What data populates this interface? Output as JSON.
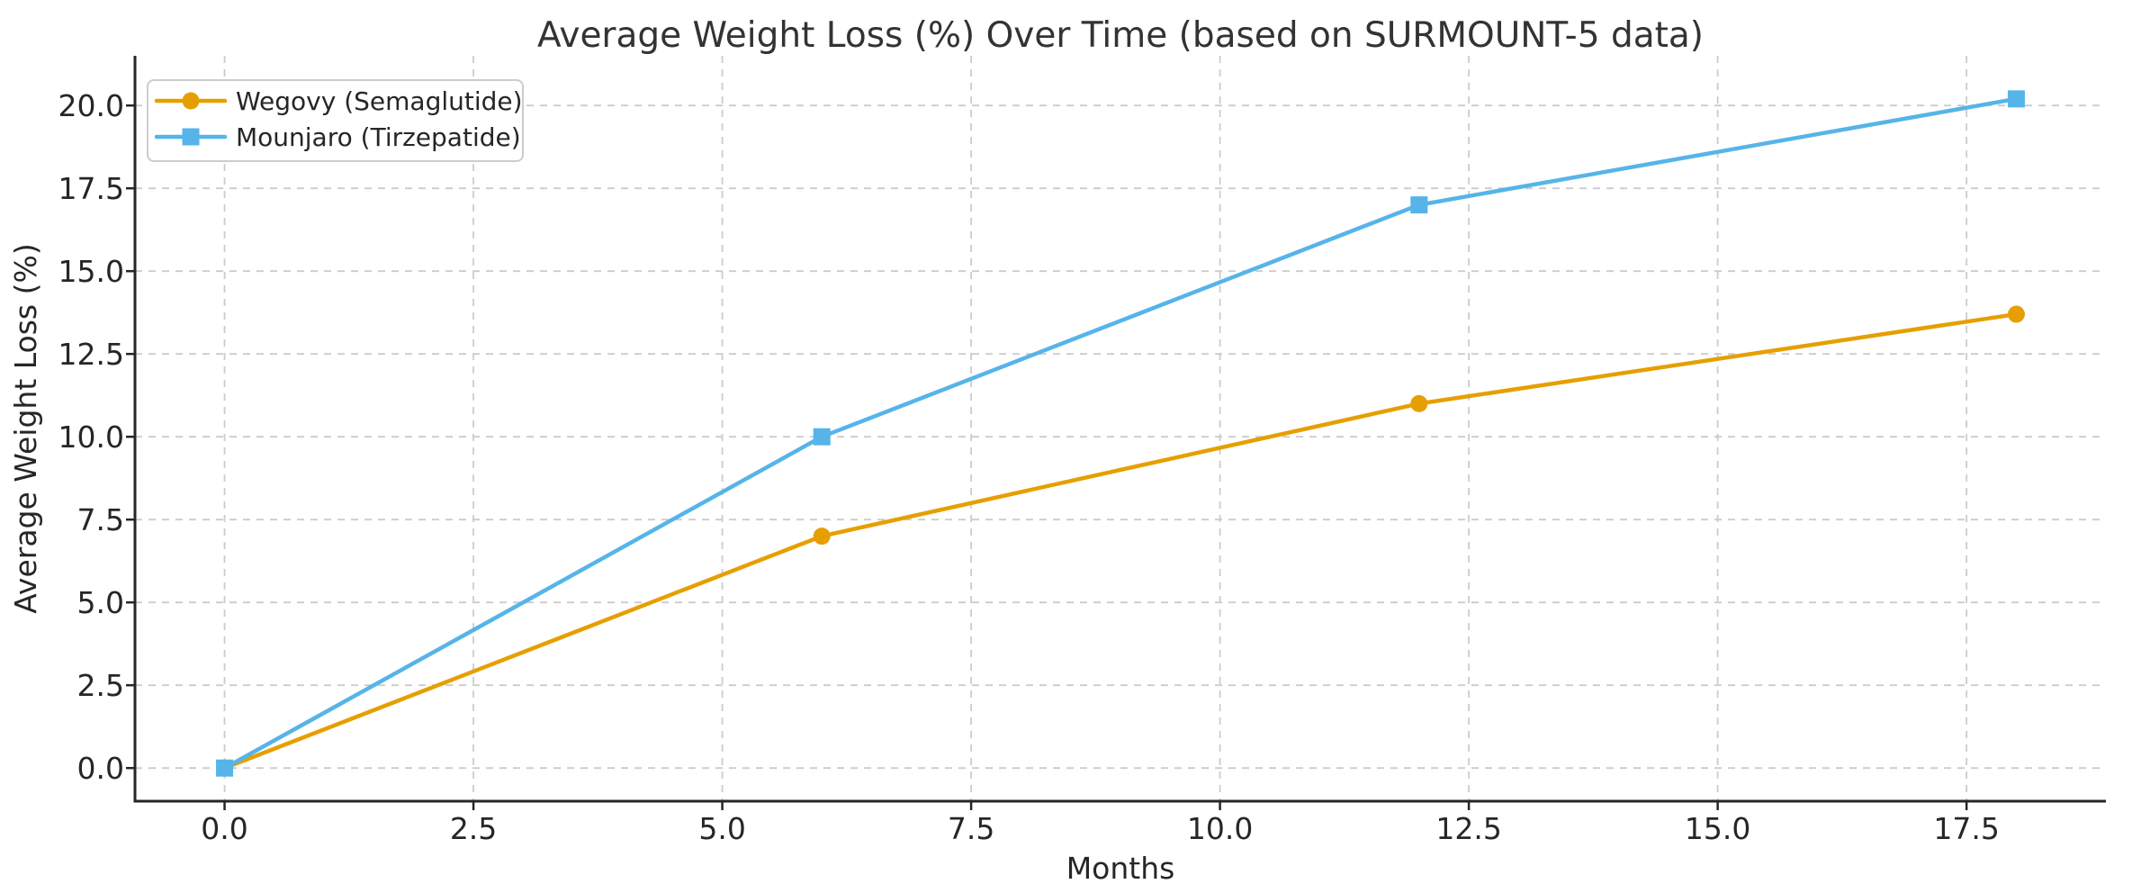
{
  "figure": {
    "background": "#ffffff"
  },
  "chart_data": {
    "type": "line",
    "title": "Average Weight Loss (%) Over Time (based on SURMOUNT-5 data)",
    "xlabel": "Months",
    "ylabel": "Average Weight Loss (%)",
    "x": [
      0,
      6,
      12,
      18
    ],
    "series": [
      {
        "name": "Wegovy (Semaglutide)",
        "values": [
          0,
          7.0,
          11.0,
          13.7
        ],
        "color": "#E69F00",
        "marker": "circle"
      },
      {
        "name": "Mounjaro (Tirzepatide)",
        "values": [
          0,
          10.0,
          17.0,
          20.2
        ],
        "color": "#56B4E9",
        "marker": "square"
      }
    ],
    "xlim": [
      -0.9,
      18.9
    ],
    "ylim": [
      -1.0,
      21.5
    ],
    "xticks": {
      "values": [
        0,
        2.5,
        5,
        7.5,
        10,
        12.5,
        15,
        17.5
      ],
      "labels": [
        "0.0",
        "2.5",
        "5.0",
        "7.5",
        "10.0",
        "12.5",
        "15.0",
        "17.5"
      ]
    },
    "yticks": {
      "values": [
        0,
        2.5,
        5,
        7.5,
        10,
        12.5,
        15,
        17.5,
        20
      ],
      "labels": [
        "0.0",
        "2.5",
        "5.0",
        "7.5",
        "10.0",
        "12.5",
        "15.0",
        "17.5",
        "20.0"
      ]
    },
    "grid": {
      "on": true,
      "style": "dashed",
      "color": "#cccccc"
    },
    "legend": {
      "position": "upper left"
    },
    "colors": {
      "spine": "#262626",
      "tick_text": "#262626",
      "title_text": "#333333",
      "grid": "#cccccc"
    }
  }
}
